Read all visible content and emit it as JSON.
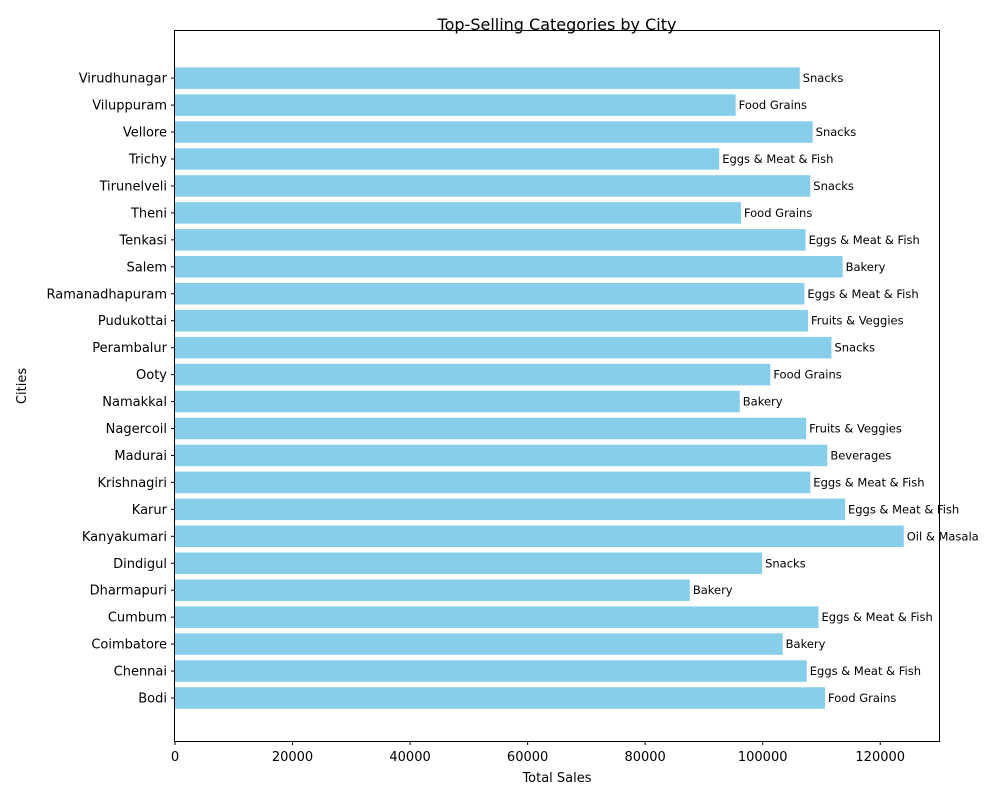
{
  "chart_data": {
    "type": "bar",
    "orientation": "horizontal",
    "title": "Top-Selling Categories by City",
    "xlabel": "Total Sales",
    "ylabel": "Cities",
    "xlim": [
      0,
      130000
    ],
    "xticks": [
      "0",
      "20000",
      "40000",
      "60000",
      "80000",
      "100000",
      "120000"
    ],
    "grid": false,
    "bar_color": "#87ceeb",
    "categories": [
      "Bodi",
      "Chennai",
      "Coimbatore",
      "Cumbum",
      "Dharmapuri",
      "Dindigul",
      "Kanyakumari",
      "Karur",
      "Krishnagiri",
      "Madurai",
      "Nagercoil",
      "Namakkal",
      "Ooty",
      "Perambalur",
      "Pudukottai",
      "Ramanadhapuram",
      "Salem",
      "Tenkasi",
      "Theni",
      "Tirunelveli",
      "Trichy",
      "Vellore",
      "Viluppuram",
      "Virudhunagar"
    ],
    "values": [
      110600,
      107500,
      103400,
      109500,
      87600,
      99900,
      124000,
      114000,
      108100,
      111000,
      107400,
      96100,
      101300,
      111700,
      107700,
      107100,
      113600,
      107300,
      96300,
      108100,
      92600,
      108500,
      95400,
      106300
    ],
    "bar_labels": [
      "Food Grains",
      "Eggs & Meat & Fish",
      "Bakery",
      "Eggs & Meat & Fish",
      "Bakery",
      "Snacks",
      "Oil & Masala",
      "Eggs & Meat & Fish",
      "Eggs & Meat & Fish",
      "Beverages",
      "Fruits & Veggies",
      "Bakery",
      "Food Grains",
      "Snacks",
      "Fruits & Veggies",
      "Eggs & Meat & Fish",
      "Bakery",
      "Eggs & Meat & Fish",
      "Food Grains",
      "Snacks",
      "Eggs & Meat & Fish",
      "Snacks",
      "Food Grains",
      "Snacks"
    ]
  }
}
